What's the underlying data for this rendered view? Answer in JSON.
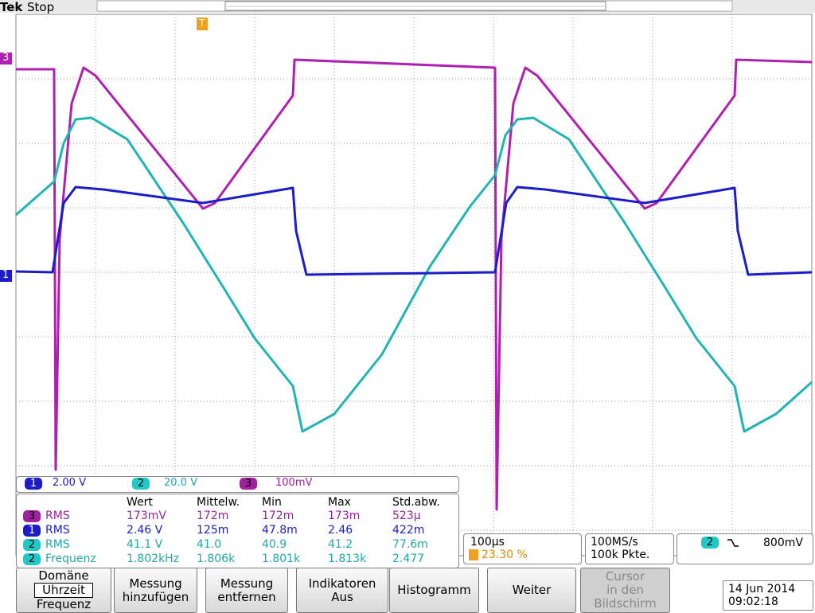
{
  "header": {
    "brand": "Tek",
    "status": "Stop"
  },
  "markers": {
    "ch3": "3",
    "ch1": "1",
    "trigger": "T"
  },
  "channels": [
    {
      "number": "1",
      "scale": "2.00 V"
    },
    {
      "number": "2",
      "scale": "20.0 V"
    },
    {
      "number": "3",
      "scale": "100mV"
    }
  ],
  "measurements": {
    "columns": [
      "Wert",
      "Mittelw.",
      "Min",
      "Max",
      "Std.abw."
    ],
    "rows": [
      {
        "channel": "3",
        "type": "RMS",
        "values": [
          "173mV",
          "172m",
          "172m",
          "173m",
          "523µ"
        ]
      },
      {
        "channel": "1",
        "type": "RMS",
        "values": [
          "2.46 V",
          "125m",
          "47.8m",
          "2.46",
          "422m"
        ]
      },
      {
        "channel": "2",
        "type": "RMS",
        "values": [
          "41.1 V",
          "41.0",
          "40.9",
          "41.2",
          "77.6m"
        ]
      },
      {
        "channel": "2",
        "type": "Frequenz",
        "values": [
          "1.802kHz",
          "1.806k",
          "1.801k",
          "1.813k",
          "2.477"
        ]
      }
    ]
  },
  "timebase": {
    "scale": "100µs",
    "trigger_position": "23.30 %"
  },
  "acquisition": {
    "rate": "100MS/s",
    "length": "100k Pkte."
  },
  "trigger": {
    "source": "2",
    "level": "800mV"
  },
  "menu": [
    {
      "lines": [
        "Domäne",
        "Uhrzeit",
        "Frequenz"
      ]
    },
    {
      "lines": [
        "Messung",
        "hinzufügen"
      ]
    },
    {
      "lines": [
        "Messung",
        "entfernen"
      ]
    },
    {
      "lines": [
        "Indikatoren",
        "Aus"
      ]
    },
    {
      "lines": [
        "Histogramm"
      ]
    },
    {
      "lines": [
        "Weiter"
      ]
    },
    {
      "lines": [
        "Cursor",
        "in den",
        "Bildschirm"
      ]
    }
  ],
  "datetime": {
    "date": "14 Jun 2014",
    "time": "09:02:18"
  }
}
